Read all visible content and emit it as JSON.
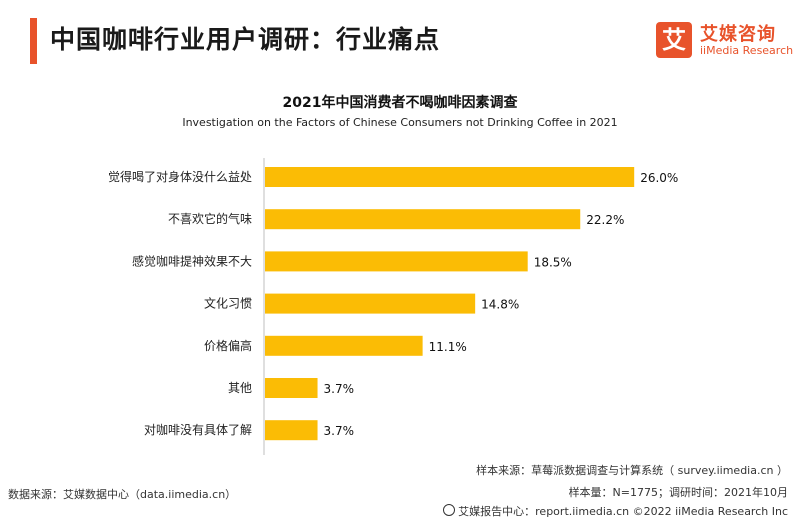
{
  "header": {
    "title": "中国咖啡行业用户调研：行业痛点",
    "logo_cn": "艾媒咨询",
    "logo_en": "iiMedia Research",
    "logo_mark": "艾",
    "accent_color": "#e8532b"
  },
  "chart_data": {
    "type": "bar",
    "orientation": "horizontal",
    "title": "2021年中国消费者不喝咖啡因素调查",
    "subtitle": "Investigation on the Factors of Chinese Consumers not Drinking Coffee in 2021",
    "categories": [
      "觉得喝了对身体没什么益处",
      "不喜欢它的气味",
      "感觉咖啡提神效果不大",
      "文化习惯",
      "价格偏高",
      "其他",
      "对咖啡没有具体了解"
    ],
    "values": [
      26.0,
      22.2,
      18.5,
      14.8,
      11.1,
      3.7,
      3.7
    ],
    "value_labels": [
      "26.0%",
      "22.2%",
      "18.5%",
      "14.8%",
      "11.1%",
      "3.7%",
      "3.7%"
    ],
    "bar_color": "#fbbc05",
    "xlim": [
      0,
      30
    ]
  },
  "footer": {
    "source": "数据来源：艾媒数据中心（data.iimedia.cn）",
    "sample_source": "样本来源：草莓派数据调查与计算系统（ survey.iimedia.cn ）",
    "sample_size": "样本量：N=1775；调研时间：2021年10月",
    "report": "艾媒报告中心：report.iimedia.cn   ©2022  iiMedia Research  Inc"
  }
}
